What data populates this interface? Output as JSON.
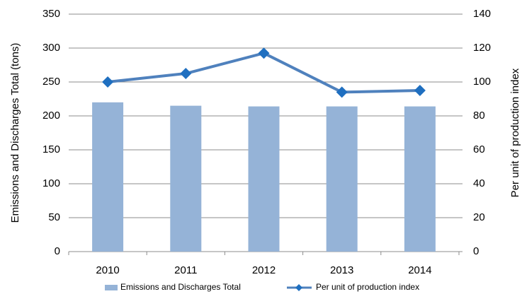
{
  "chart_data": {
    "type": "bar_line",
    "categories": [
      "2010",
      "2011",
      "2012",
      "2013",
      "2014"
    ],
    "ylabel": "Emissions and Discharges Total  (tons)",
    "y2label": "Per unit of production index",
    "ylim": [
      0,
      350
    ],
    "yticks": [
      0,
      50,
      100,
      150,
      200,
      250,
      300,
      350
    ],
    "y2lim": [
      0,
      140
    ],
    "y2ticks": [
      0,
      20,
      40,
      60,
      80,
      100,
      120,
      140
    ],
    "grid": true,
    "legend": "bottom",
    "series": [
      {
        "name": "Emissions and Discharges Total",
        "type": "bar",
        "color": "#95b3d7",
        "values": [
          220,
          215,
          214,
          214,
          214
        ]
      },
      {
        "name": "Per unit of production index",
        "type": "line",
        "axis": "y2",
        "color": "#4f81bd",
        "marker_color": "#1f6fc0",
        "values": [
          100,
          105,
          117,
          94,
          95
        ]
      }
    ]
  }
}
